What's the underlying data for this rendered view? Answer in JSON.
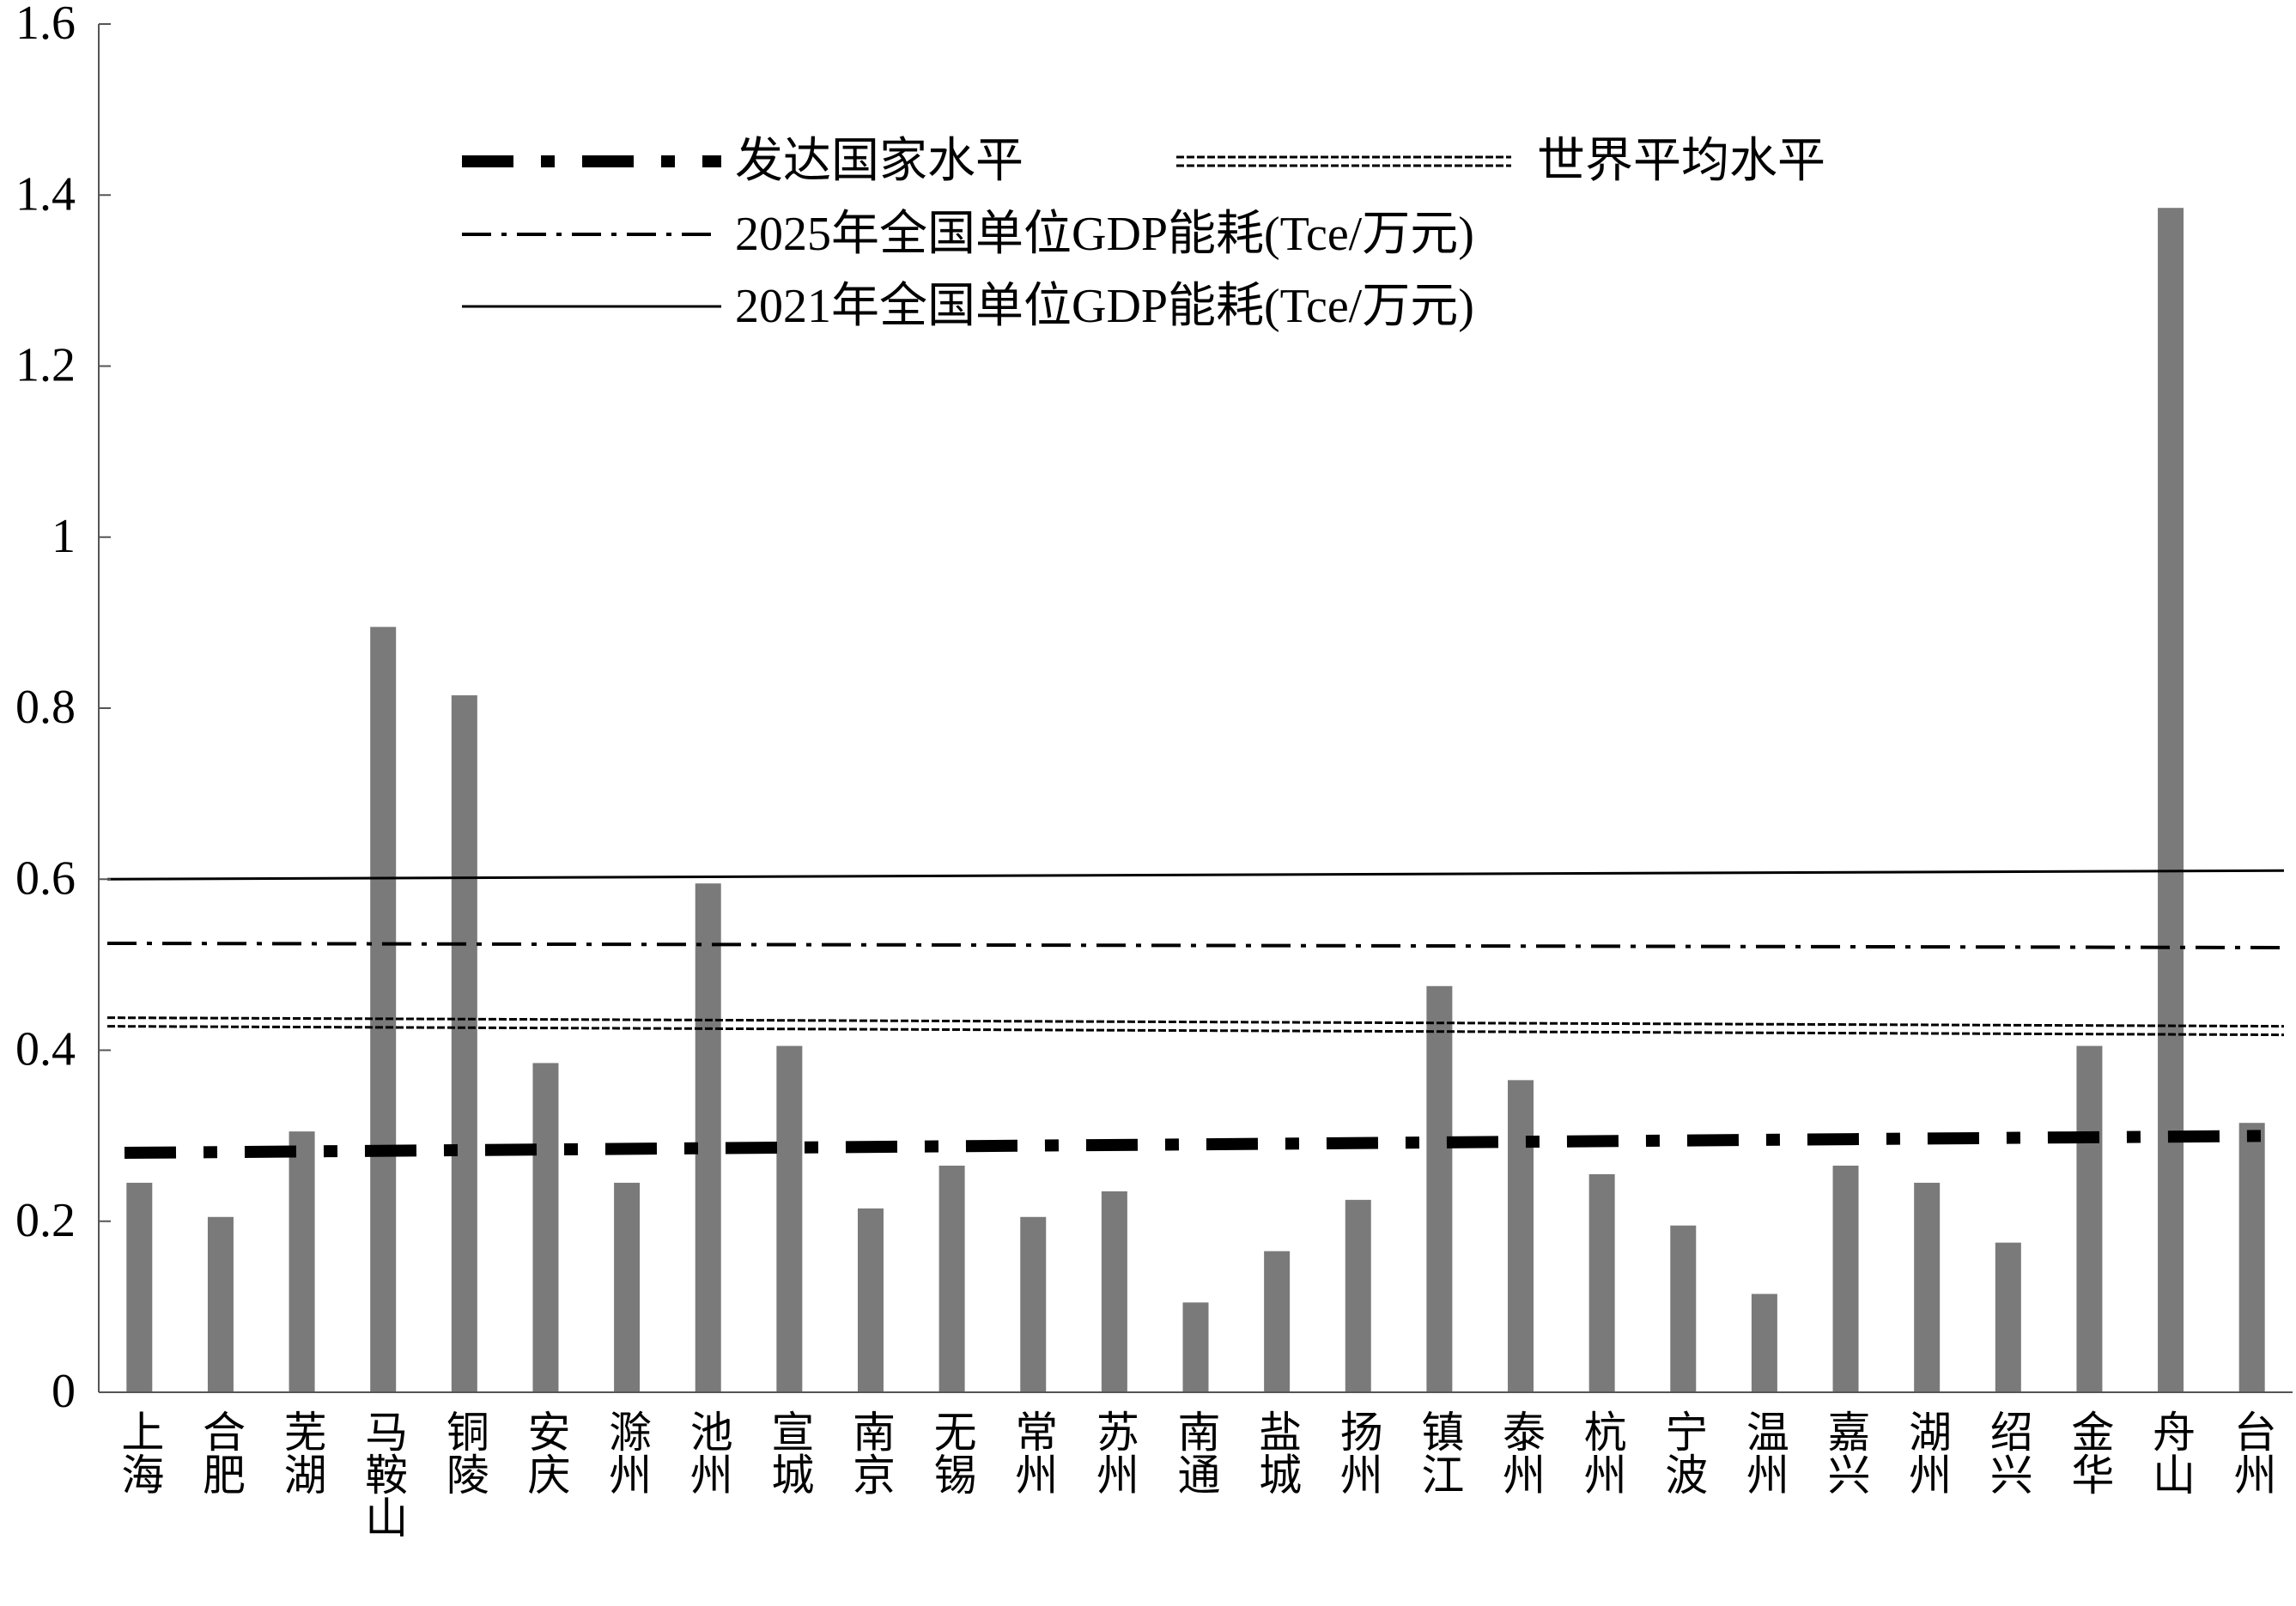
{
  "chart_data": {
    "type": "bar",
    "title": "",
    "xlabel": "",
    "ylabel": "",
    "ylim": [
      0,
      1.6
    ],
    "yticks": [
      {
        "value": 0,
        "label": "0"
      },
      {
        "value": 0.2,
        "label": "0.2"
      },
      {
        "value": 0.4,
        "label": "0.4"
      },
      {
        "value": 0.6,
        "label": "0.6"
      },
      {
        "value": 0.8,
        "label": "0.8"
      },
      {
        "value": 1,
        "label": "1"
      },
      {
        "value": 1.2,
        "label": "1.2"
      },
      {
        "value": 1.4,
        "label": "1.4"
      },
      {
        "value": 1.6,
        "label": "1.6"
      }
    ],
    "grid": false,
    "legend_position": "top",
    "categories": [
      "上海",
      "合肥",
      "芜湖",
      "马鞍山",
      "铜陵",
      "安庆",
      "滁州",
      "池州",
      "宣城",
      "南京",
      "无锡",
      "常州",
      "苏州",
      "南通",
      "盐城",
      "扬州",
      "镇江",
      "泰州",
      "杭州",
      "宁波",
      "温州",
      "嘉兴",
      "湖州",
      "绍兴",
      "金华",
      "舟山",
      "台州"
    ],
    "values": [
      0.245,
      0.205,
      0.305,
      0.895,
      0.815,
      0.385,
      0.245,
      0.595,
      0.405,
      0.215,
      0.265,
      0.205,
      0.235,
      0.105,
      0.165,
      0.225,
      0.475,
      0.365,
      0.255,
      0.195,
      0.115,
      0.265,
      0.245,
      0.175,
      0.405,
      1.385,
      0.315
    ],
    "bar_color": "#7a7a7a",
    "reference_lines": [
      {
        "name": "发达国家水平",
        "style": "dash-dot-thick",
        "start": 0.28,
        "end": 0.3
      },
      {
        "name": "世界平均水平",
        "style": "double-dashed",
        "start": 0.433,
        "end": 0.423
      },
      {
        "name": "2025年全国单位GDP能耗(Tce/万元)",
        "style": "dash-dot-dot",
        "start": 0.525,
        "end": 0.52
      },
      {
        "name": "2021年全国单位GDP能耗(Tce/万元)",
        "style": "solid",
        "start": 0.6,
        "end": 0.61
      }
    ]
  }
}
